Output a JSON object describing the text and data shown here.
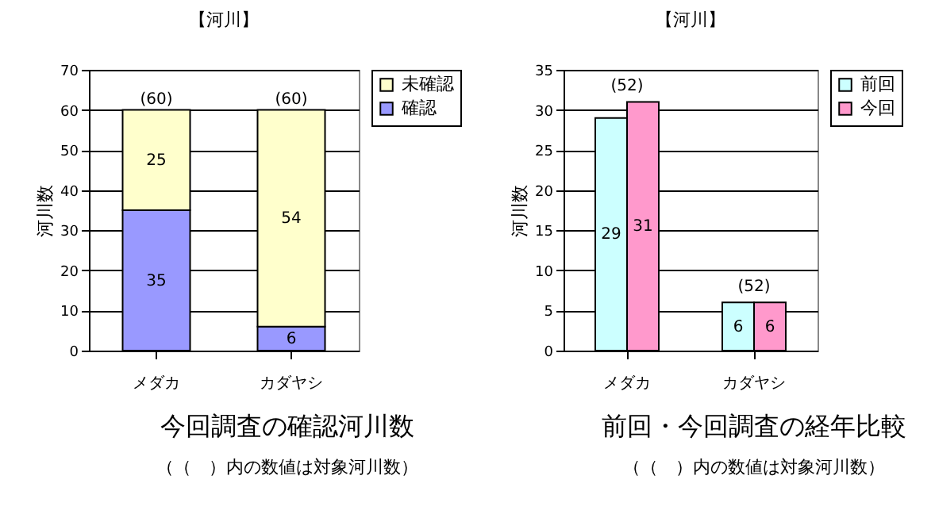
{
  "chart_data": [
    {
      "type": "bar",
      "title": "【河川】",
      "ylabel": "河川数",
      "categories": [
        "メダカ",
        "カダヤシ"
      ],
      "stacked": true,
      "series": [
        {
          "name": "確認",
          "color": "#9999ff",
          "values": [
            35,
            6
          ]
        },
        {
          "name": "未確認",
          "color": "#ffffcc",
          "values": [
            25,
            54
          ]
        }
      ],
      "totals": [
        "(60)",
        "(60)"
      ],
      "ylim": [
        0,
        70
      ],
      "yticks": [
        0,
        10,
        20,
        30,
        40,
        50,
        60,
        70
      ],
      "grid": "y",
      "legend": "right",
      "data_labels": true,
      "annotations": [
        "今回調査の確認河川数",
        "（（　）内の数値は対象河川数）"
      ]
    },
    {
      "type": "bar",
      "title": "【河川】",
      "ylabel": "河川数",
      "categories": [
        "メダカ",
        "カダヤシ"
      ],
      "series": [
        {
          "name": "前回",
          "color": "#ccffff",
          "values": [
            29,
            6
          ]
        },
        {
          "name": "今回",
          "color": "#ff99cc",
          "values": [
            31,
            6
          ]
        }
      ],
      "ylim": [
        0,
        35
      ],
      "yticks": [
        0,
        5,
        10,
        15,
        20,
        25,
        30,
        35
      ],
      "grid": "y",
      "legend": "right",
      "data_labels": true,
      "annotations": [
        {
          "text": "(52)",
          "x": "メダカ",
          "y": 31
        },
        {
          "text": "(52)",
          "x": "カダヤシ",
          "y": 6
        },
        "前回・今回調査の経年比較",
        "（（　）内の数値は対象河川数）"
      ]
    }
  ]
}
